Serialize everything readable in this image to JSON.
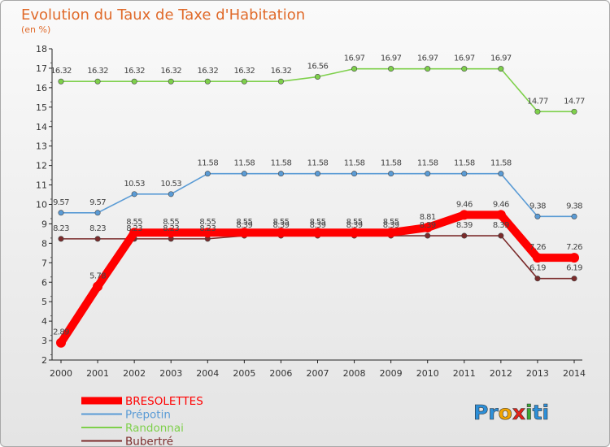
{
  "chart_data": {
    "type": "line",
    "title": "Evolution du Taux de Taxe d'Habitation",
    "subtitle": "(en %)",
    "xlabel": "",
    "ylabel": "",
    "ylim": [
      2,
      18
    ],
    "grid": false,
    "legend_position": "bottom-left",
    "x": [
      "2000",
      "2001",
      "2002",
      "2003",
      "2004",
      "2005",
      "2006",
      "2007",
      "2008",
      "2009",
      "2010",
      "2011",
      "2012",
      "2013",
      "2014"
    ],
    "series": [
      {
        "name": "BRESOLETTES",
        "color": "#ff0000",
        "values": [
          2.89,
          5.78,
          8.55,
          8.55,
          8.55,
          8.55,
          8.55,
          8.55,
          8.55,
          8.55,
          8.81,
          9.46,
          9.46,
          7.26,
          7.26
        ],
        "labels": [
          "2.89",
          "5.78",
          "8.55",
          "8.55",
          "8.55",
          "8.55",
          "8.55",
          "8.55",
          "8.55",
          "8.55",
          "8.81",
          "9.46",
          "9.46",
          "7.26",
          "7.26"
        ]
      },
      {
        "name": "Prépotin",
        "color": "#5a9bd5",
        "values": [
          9.57,
          9.57,
          10.53,
          10.53,
          11.58,
          11.58,
          11.58,
          11.58,
          11.58,
          11.58,
          11.58,
          11.58,
          11.58,
          9.38,
          9.38
        ],
        "labels": [
          "9.57",
          "9.57",
          "10.53",
          "10.53",
          "11.58",
          "11.58",
          "11.58",
          "11.58",
          "11.58",
          "11.58",
          "11.58",
          "11.58",
          "11.58",
          "9.38",
          "9.38"
        ]
      },
      {
        "name": "Randonnai",
        "color": "#7ed04b",
        "values": [
          16.32,
          16.32,
          16.32,
          16.32,
          16.32,
          16.32,
          16.32,
          16.56,
          16.97,
          16.97,
          16.97,
          16.97,
          16.97,
          14.77,
          14.77
        ],
        "labels": [
          "16.32",
          "16.32",
          "16.32",
          "16.32",
          "16.32",
          "16.32",
          "16.32",
          "16.56",
          "16.97",
          "16.97",
          "16.97",
          "16.97",
          "16.97",
          "14.77",
          "14.77"
        ]
      },
      {
        "name": "Bubertré",
        "color": "#7b2b2b",
        "values": [
          8.23,
          8.23,
          8.23,
          8.23,
          8.23,
          8.39,
          8.39,
          8.39,
          8.39,
          8.39,
          8.39,
          8.39,
          8.39,
          6.19,
          6.19
        ],
        "labels": [
          "8.23",
          "8.23",
          "8.23",
          "8.23",
          "8.23",
          "8.39",
          "8.39",
          "8.39",
          "8.39",
          "8.39",
          "8.39",
          "8.39",
          "8.39",
          "6.19",
          "6.19"
        ]
      }
    ]
  },
  "logo": {
    "text": "Proxiti",
    "letters": [
      "P",
      "r",
      "o",
      "x",
      "i",
      "t",
      "i"
    ]
  },
  "colors": {
    "title": "#e06a2a",
    "axis": "#222222"
  }
}
